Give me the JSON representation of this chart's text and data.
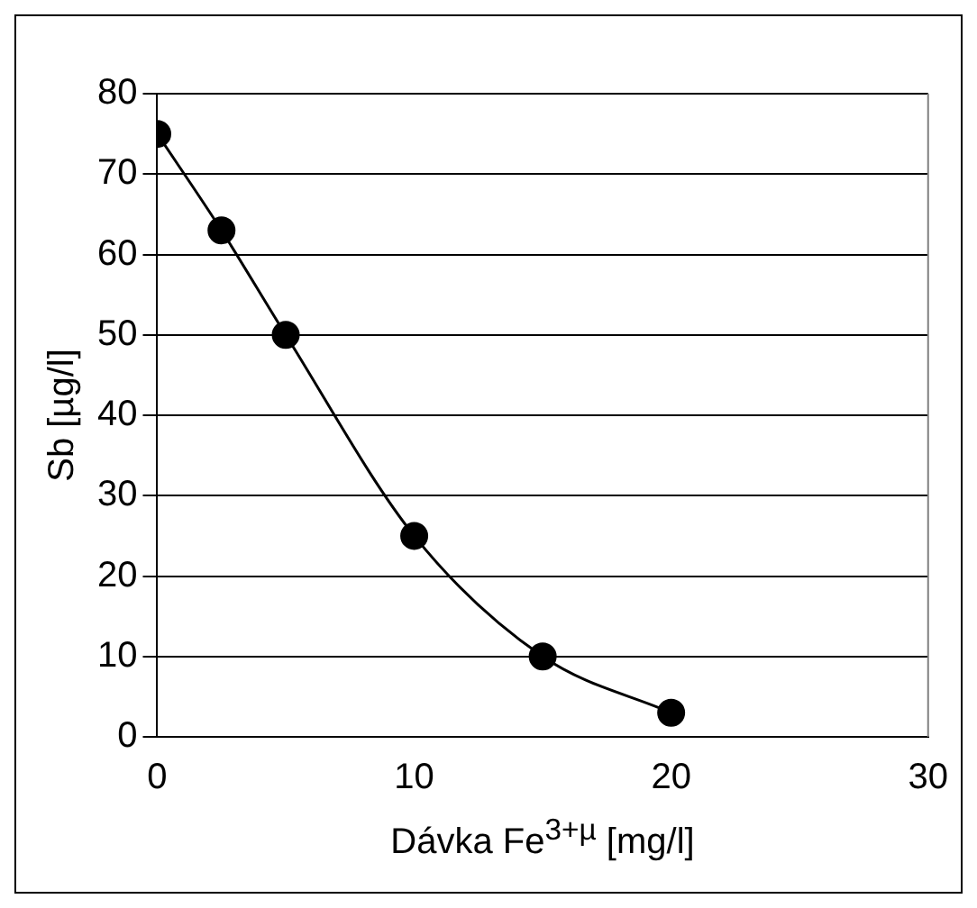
{
  "chart_data": {
    "type": "line",
    "xlabel": "Dávka Fe$^{3+µ}$ [mg/l]",
    "ylabel": "Sb [µg/l]",
    "x": [
      0,
      2.5,
      5,
      10,
      15,
      20
    ],
    "series": [
      {
        "color": "#000000",
        "values": [
          75,
          63,
          50,
          25,
          10,
          3
        ]
      }
    ],
    "xlim": [
      0,
      30
    ],
    "xticks": [
      0,
      10,
      20,
      30
    ],
    "ylim": [
      0,
      80
    ],
    "yticks": [
      0,
      10,
      20,
      30,
      40,
      50,
      60,
      70,
      80
    ],
    "grid": "y",
    "marker": "circle",
    "line_style": "solid",
    "legend": false
  }
}
